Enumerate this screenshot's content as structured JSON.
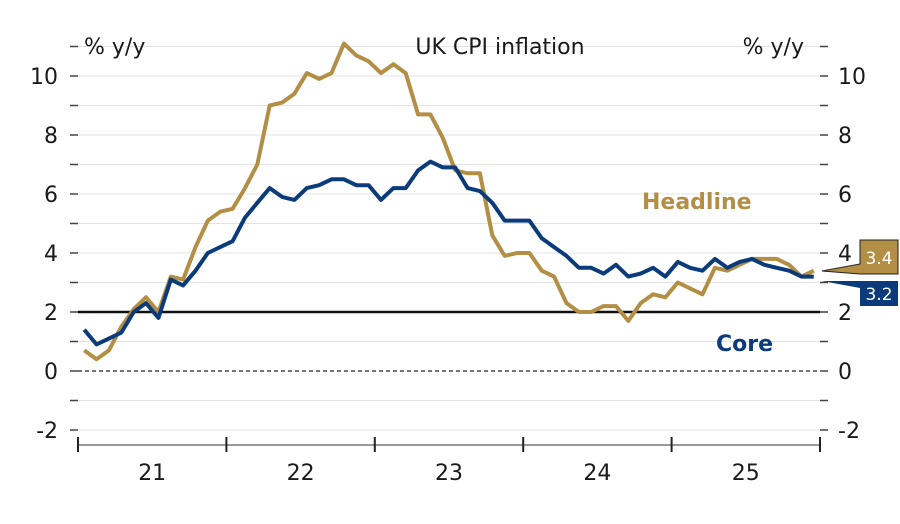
{
  "chart_data": {
    "type": "line",
    "title": "UK CPI inflation",
    "ylabel_left": "% y/y",
    "ylabel_right": "% y/y",
    "ylim": [
      -2.5,
      11
    ],
    "yticks": [
      -2,
      0,
      2,
      4,
      6,
      8,
      10
    ],
    "x_start": "2021-01",
    "x_end": "2025-12",
    "xtick_labels": [
      "21",
      "22",
      "23",
      "24",
      "25"
    ],
    "grid": true,
    "reference_lines": [
      {
        "y": 2,
        "style": "solid"
      },
      {
        "y": 0,
        "style": "dashed"
      }
    ],
    "series": [
      {
        "name": "Headline",
        "color": "#b38e45",
        "last_value_label": "3.4",
        "values": [
          0.7,
          0.4,
          0.7,
          1.5,
          2.1,
          2.5,
          2.0,
          3.2,
          3.1,
          4.2,
          5.1,
          5.4,
          5.5,
          6.2,
          7.0,
          9.0,
          9.1,
          9.4,
          10.1,
          9.9,
          10.1,
          11.1,
          10.7,
          10.5,
          10.1,
          10.4,
          10.1,
          8.7,
          8.7,
          7.9,
          6.8,
          6.7,
          6.7,
          4.6,
          3.9,
          4.0,
          4.0,
          3.4,
          3.2,
          2.3,
          2.0,
          2.0,
          2.2,
          2.2,
          1.7,
          2.3,
          2.6,
          2.5,
          3.0,
          2.8,
          2.6,
          3.5,
          3.4,
          3.6,
          3.8,
          3.8,
          3.8,
          3.6,
          3.2,
          3.4
        ]
      },
      {
        "name": "Core",
        "color": "#0b3b7a",
        "last_value_label": "3.2",
        "values": [
          1.4,
          0.9,
          1.1,
          1.3,
          2.0,
          2.3,
          1.8,
          3.1,
          2.9,
          3.4,
          4.0,
          4.2,
          4.4,
          5.2,
          5.7,
          6.2,
          5.9,
          5.8,
          6.2,
          6.3,
          6.5,
          6.5,
          6.3,
          6.3,
          5.8,
          6.2,
          6.2,
          6.8,
          7.1,
          6.9,
          6.9,
          6.2,
          6.1,
          5.7,
          5.1,
          5.1,
          5.1,
          4.5,
          4.2,
          3.9,
          3.5,
          3.5,
          3.3,
          3.6,
          3.2,
          3.3,
          3.5,
          3.2,
          3.7,
          3.5,
          3.4,
          3.8,
          3.5,
          3.7,
          3.8,
          3.6,
          3.5,
          3.4,
          3.2,
          3.2
        ]
      }
    ]
  }
}
